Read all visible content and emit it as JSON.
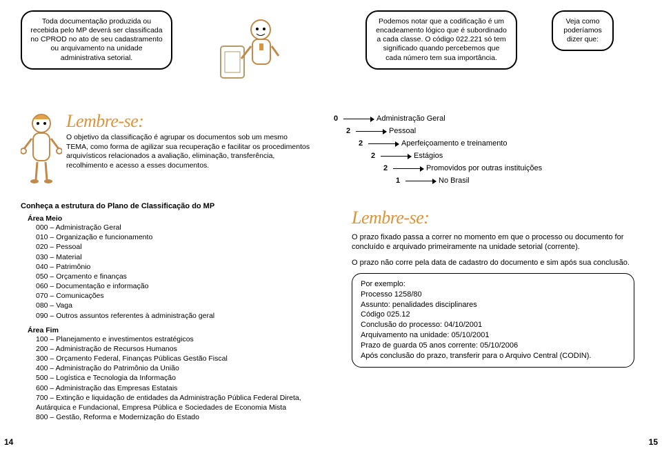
{
  "speech1": "Toda documentação produzida ou recebida pelo MP deverá ser classificada no CPROD no ato de seu cadastramento ou arquivamento na unidade administrativa setorial.",
  "speech2": "Podemos notar que a codificação é um encadeamento lógico que é subordinado a cada classe. O código 022.221 só tem significado quando percebemos que cada número tem sua importância.",
  "speech3": "Veja como poderíamos dizer que:",
  "lembre_title": "Lembre-se:",
  "lembre_body": "O objetivo da classificação é agrupar os documentos sob um mesmo TEMA, como forma de agilizar sua recuperação e facilitar os procedimentos arquivísticos relacionados a avaliação, eliminação, transferência, recolhimento e acesso a esses documentos.",
  "code_rows": [
    {
      "indent": 0,
      "num": "0",
      "label": "Administração Geral"
    },
    {
      "indent": 1,
      "num": "2",
      "label": "Pessoal"
    },
    {
      "indent": 2,
      "num": "2",
      "label": "Aperfeiçoamento e treinamento"
    },
    {
      "indent": 3,
      "num": "2",
      "label": "Estágios"
    },
    {
      "indent": 4,
      "num": "2",
      "label": "Promovidos por outras instituições"
    },
    {
      "indent": 5,
      "num": "1",
      "label": "No Brasil"
    }
  ],
  "plan_title": "Conheça a estrutura do Plano de Classificação do MP",
  "area_meio_title": "Área Meio",
  "area_meio": [
    "000 – Administração Geral",
    "010 – Organização e funcionamento",
    "020 – Pessoal",
    "030 – Material",
    "040 – Patrimônio",
    "050 – Orçamento e finanças",
    "060 – Documentação e informação",
    "070 – Comunicações",
    "080 – Vaga",
    "090 – Outros assuntos referentes à administração geral"
  ],
  "area_fim_title": "Área Fim",
  "area_fim": [
    "100 – Planejamento e investimentos estratégicos",
    "200 – Administração de Recursos Humanos",
    "300 – Orçamento Federal, Finanças Públicas Gestão Fiscal",
    "400 – Administração do Patrimônio da União",
    "500 – Logística e Tecnologia da Informação",
    "600 – Administração das Empresas Estatais",
    "700 – Extinção e liquidação de entidades da Administração Pública Federal Direta, Autárquica e Fundacional, Empresa Pública e Sociedades de Economia Mista",
    "800 – Gestão, Reforma e Modernização do Estado"
  ],
  "right_para1": "O prazo fixado passa a correr no momento em que o processo ou documento for concluído e arquivado primeiramente na unidade setorial (corrente).",
  "right_para2": "O prazo não corre pela data de cadastro do documento e sim após sua conclusão.",
  "example": [
    "Por exemplo:",
    "Processo 1258/80",
    "Assunto: penalidades disciplinares",
    "Código 025.12",
    "Conclusão do processo: 04/10/2001",
    "Arquivamento na unidade: 05/10/2001",
    "Prazo de guarda 05 anos corrente: 05/10/2006",
    "Após conclusão do prazo, transferir para o Arquivo Central (CODIN)."
  ],
  "page_left": "14",
  "page_right": "15",
  "colors": {
    "accent": "#d9953d",
    "text": "#000000",
    "bg": "#ffffff"
  }
}
